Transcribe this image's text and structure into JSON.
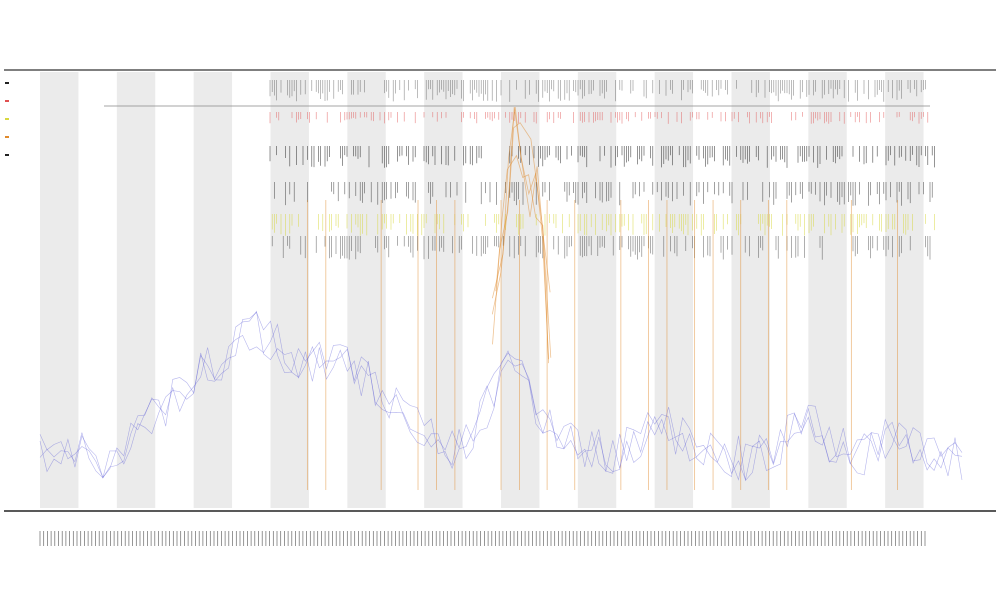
{
  "chart_data": {
    "type": "line",
    "title": "",
    "subtitle_1": "",
    "subtitle_2": "",
    "xlabel": "",
    "ylabel": "",
    "legend_position": "top-left",
    "grid": false,
    "colors": {
      "baseline": "#5a5ad6",
      "peaks": "#e08a2c",
      "band_shade": "#ebebeb",
      "ticks_dark": "#222222",
      "ticks_red": "#e05050",
      "ticks_yellow": "#d8d840"
    },
    "series": [
      {
        "values": [
          12,
          11,
          11,
          12,
          10,
          11,
          12,
          13,
          12,
          11,
          12,
          14,
          16,
          19,
          22,
          24,
          28,
          30,
          34,
          38,
          42,
          46,
          48,
          52,
          55,
          56,
          58,
          60,
          66,
          70,
          72,
          74,
          70,
          68,
          64,
          60,
          58,
          56,
          55,
          54,
          56,
          58,
          60,
          58,
          56,
          52,
          48,
          46,
          44,
          40,
          36,
          34,
          30,
          28,
          24,
          20,
          18,
          16,
          14,
          14,
          16,
          18,
          22,
          28,
          34,
          44,
          54,
          60,
          58,
          52,
          44,
          36,
          30,
          26,
          22,
          20,
          18,
          16,
          15,
          14,
          14,
          13,
          13,
          14,
          16,
          18,
          20,
          22,
          24,
          26,
          24,
          22,
          20,
          18,
          16,
          14,
          13,
          12,
          11,
          11,
          10,
          10,
          11,
          12,
          14,
          16,
          18,
          22,
          26,
          30,
          28,
          24,
          20,
          18,
          16,
          14,
          13,
          12,
          12,
          14,
          16,
          18,
          20,
          22,
          20,
          18,
          16,
          14,
          12,
          11,
          10,
          10,
          10
        ]
      },
      {
        "values": [
          0,
          0,
          0,
          0,
          0,
          0,
          0,
          0,
          0,
          0,
          0,
          0,
          0,
          0,
          0,
          0,
          0,
          0,
          0,
          0,
          0,
          0,
          0,
          0,
          0,
          0,
          0,
          0,
          0,
          0,
          0,
          0,
          0,
          0,
          0,
          0,
          0,
          0,
          0,
          0,
          0,
          0,
          0,
          0,
          0,
          0,
          0,
          0,
          0,
          0,
          0,
          0,
          0,
          0,
          0,
          0,
          0,
          0,
          0,
          0,
          0,
          0,
          0,
          0,
          0,
          80,
          110,
          150,
          170,
          160,
          150,
          140,
          110,
          80,
          0,
          0,
          0,
          0,
          0,
          0,
          0,
          0,
          0,
          0,
          0,
          0,
          0,
          0,
          0,
          0,
          0,
          0,
          0,
          0,
          0,
          0,
          0,
          0,
          0,
          0,
          0,
          0,
          0,
          0,
          0,
          0,
          0,
          0,
          0,
          0,
          0,
          0,
          0,
          0,
          0,
          0,
          0,
          0,
          0,
          0,
          0,
          0,
          0,
          0,
          0,
          0,
          0,
          0,
          0,
          0,
          0,
          0,
          0
        ]
      }
    ],
    "bands_count": 12,
    "x_tick_count": 240,
    "peak_lines": [
      0.29,
      0.31,
      0.37,
      0.41,
      0.43,
      0.45,
      0.5,
      0.52,
      0.55,
      0.58,
      0.63,
      0.66,
      0.68,
      0.71,
      0.73,
      0.76,
      0.79,
      0.81,
      0.88,
      0.93
    ]
  }
}
